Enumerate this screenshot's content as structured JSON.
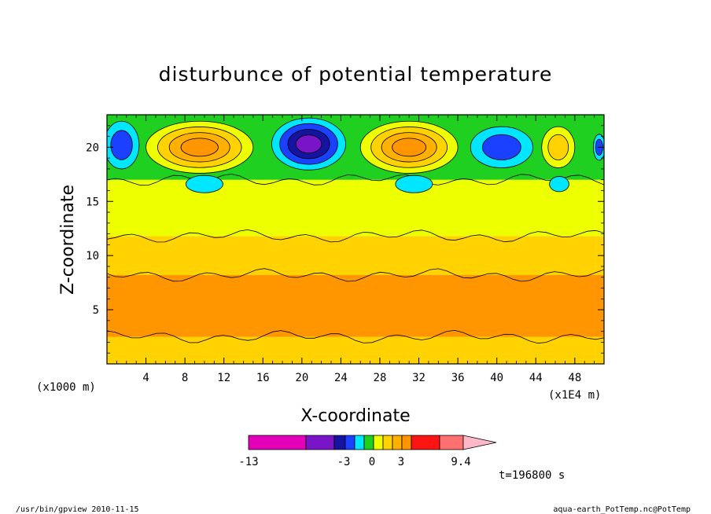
{
  "chart_data": {
    "type": "heatmap",
    "title": "disturbunce of potential temperature",
    "xlabel": "X-coordinate",
    "ylabel": "Z-coordinate",
    "x_unit_label": "(x1E4 m)",
    "z_unit_label": "(x1000 m)",
    "xlim": [
      0,
      51
    ],
    "ylim": [
      0,
      23
    ],
    "x_ticks": [
      4,
      8,
      12,
      16,
      20,
      24,
      28,
      32,
      36,
      40,
      44,
      48
    ],
    "y_ticks": [
      5,
      10,
      15,
      20
    ],
    "x_tick_labels": [
      "4",
      "8",
      "12",
      "16",
      "20",
      "24",
      "28",
      "32",
      "36",
      "40",
      "44",
      "48"
    ],
    "y_tick_labels": [
      "5",
      "10",
      "15",
      "20"
    ],
    "colorbar": {
      "colors": [
        "#e400b8",
        "#7a14c8",
        "#1414a0",
        "#1c40ff",
        "#00e6ff",
        "#20d020",
        "#eeff00",
        "#ffd200",
        "#ffb000",
        "#ff9600",
        "#ff1414",
        "#ff7070",
        "#ffb8c8"
      ],
      "labels": [
        "-13",
        "-3",
        "0",
        "3",
        "9.4"
      ]
    },
    "layers": [
      {
        "z": [
          0,
          2.5
        ],
        "color": "#ffd200"
      },
      {
        "z": [
          2.5,
          8.2
        ],
        "color": "#ff9600"
      },
      {
        "z": [
          8.2,
          11.8
        ],
        "color": "#ffd200"
      },
      {
        "z": [
          11.8,
          17
        ],
        "color": "#eeff00"
      },
      {
        "z": [
          17,
          23
        ],
        "color": "#20d020"
      }
    ],
    "features": [
      {
        "name": "cold-core",
        "x": 20.7,
        "z": 20.3,
        "rx": 3.8,
        "rz": 2.4,
        "colors": [
          "#00e6ff",
          "#1c40ff",
          "#1414a0",
          "#7a14c8"
        ]
      },
      {
        "name": "warm-core-west",
        "x": 9.5,
        "z": 20.0,
        "rx": 5.5,
        "rz": 2.4,
        "colors": [
          "#eeff00",
          "#ffd200",
          "#ffb000",
          "#ff9600"
        ]
      },
      {
        "name": "warm-core-east",
        "x": 31.0,
        "z": 20.0,
        "rx": 5.0,
        "rz": 2.4,
        "colors": [
          "#eeff00",
          "#ffd200",
          "#ffb000",
          "#ff9600"
        ]
      },
      {
        "name": "cold-west-edge",
        "x": 1.5,
        "z": 20.2,
        "rx": 1.8,
        "rz": 2.2,
        "colors": [
          "#00e6ff",
          "#1c40ff"
        ]
      },
      {
        "name": "cold-east-patch",
        "x": 40.5,
        "z": 20.0,
        "rx": 3.2,
        "rz": 1.9,
        "colors": [
          "#00e6ff",
          "#1c40ff"
        ]
      },
      {
        "name": "warm-east-patch",
        "x": 46.3,
        "z": 20.0,
        "rx": 1.7,
        "rz": 1.9,
        "colors": [
          "#eeff00",
          "#ffd200"
        ]
      },
      {
        "name": "cold-lower-west",
        "x": 10.0,
        "z": 16.6,
        "rx": 1.9,
        "rz": 0.8,
        "colors": [
          "#00e6ff"
        ]
      },
      {
        "name": "cold-lower-east",
        "x": 31.5,
        "z": 16.6,
        "rx": 1.9,
        "rz": 0.8,
        "colors": [
          "#00e6ff"
        ]
      },
      {
        "name": "cold-lower-far",
        "x": 46.4,
        "z": 16.6,
        "rx": 1.0,
        "rz": 0.7,
        "colors": [
          "#00e6ff"
        ]
      },
      {
        "name": "cold-far-east-edge",
        "x": 50.5,
        "z": 20.0,
        "rx": 0.6,
        "rz": 1.2,
        "colors": [
          "#00e6ff",
          "#1c40ff"
        ]
      }
    ]
  },
  "timestamp": "t=196800 s",
  "footer": {
    "left": "/usr/bin/gpview  2010-11-15",
    "right": "aqua-earth_PotTemp.nc@PotTemp"
  }
}
